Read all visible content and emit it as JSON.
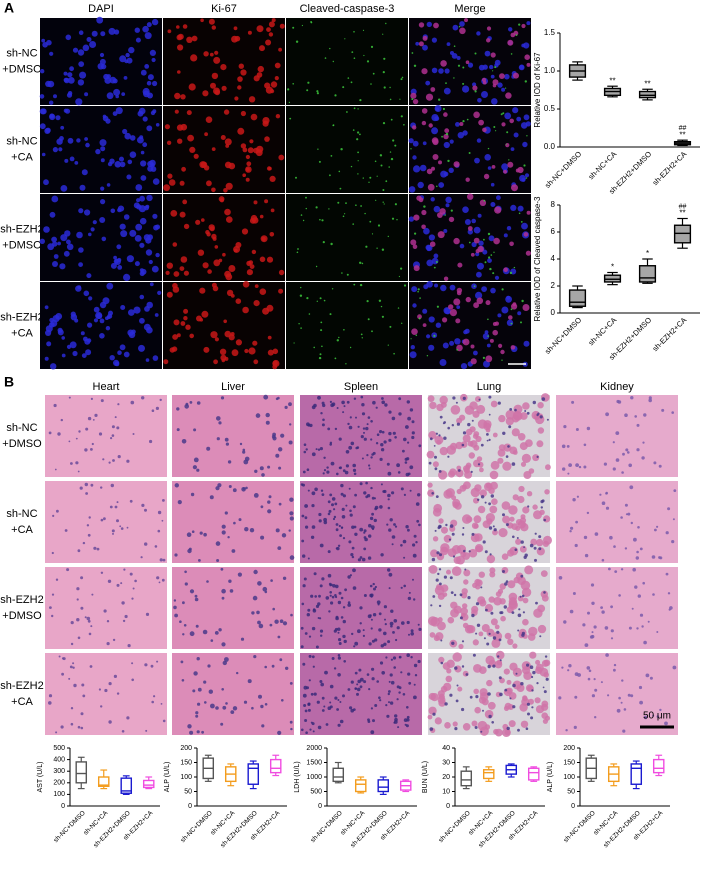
{
  "panel_a": {
    "label": "A",
    "columns": [
      "DAPI",
      "Ki-67",
      "Cleaved-caspase-3",
      "Merge"
    ],
    "rows": [
      [
        "sh-NC",
        "+DMSO"
      ],
      [
        "sh-NC",
        "+CA"
      ],
      [
        "sh-EZH2",
        "+DMSO"
      ],
      [
        "sh-EZH2",
        "+CA"
      ]
    ]
  },
  "panel_b": {
    "label": "B",
    "columns": [
      "Heart",
      "Liver",
      "Spleen",
      "Lung",
      "Kidney"
    ],
    "rows": [
      [
        "sh-NC",
        "+DMSO"
      ],
      [
        "sh-NC",
        "+CA"
      ],
      [
        "sh-EZH2",
        "+DMSO"
      ],
      [
        "sh-EZH2",
        "+CA"
      ]
    ],
    "scale_bar": "50 μm"
  },
  "chart_data": [
    {
      "type": "box",
      "ylabel": "Relative IOD of Ki-67",
      "categories": [
        "sh-NC+DMSO",
        "sh-NC+CA",
        "sh-EZH2+DMSO",
        "sh-EZH2+CA"
      ],
      "colors": [
        "#000000",
        "#000000",
        "#000000",
        "#000000"
      ],
      "fill": "#a6a6a6",
      "ylim": [
        0,
        1.5
      ],
      "yticks": [
        {
          "value": 0,
          "label": "0.0"
        },
        0.5,
        {
          "value": 1,
          "label": "1.0"
        },
        1.5
      ],
      "min": [
        0.88,
        0.66,
        0.62,
        0.02
      ],
      "q1": [
        0.92,
        0.68,
        0.65,
        0.03
      ],
      "median": [
        1.0,
        0.73,
        0.68,
        0.05
      ],
      "q3": [
        1.08,
        0.77,
        0.73,
        0.07
      ],
      "max": [
        1.12,
        0.8,
        0.76,
        0.09
      ],
      "annotations": [
        null,
        "**",
        "**",
        "**"
      ],
      "annotations_top": [
        null,
        null,
        null,
        "##"
      ]
    },
    {
      "type": "box",
      "ylabel": "Relative IOD of Cleaved caspase-3",
      "categories": [
        "sh-NC+DMSO",
        "sh-NC+CA",
        "sh-EZH2+DMSO",
        "sh-EZH2+CA"
      ],
      "colors": [
        "#000000",
        "#000000",
        "#000000",
        "#000000"
      ],
      "fill": "#a6a6a6",
      "ylim": [
        0,
        8
      ],
      "yticks": [
        0,
        2,
        4,
        6,
        8
      ],
      "min": [
        0.4,
        2.1,
        2.2,
        4.8
      ],
      "q1": [
        0.5,
        2.3,
        2.3,
        5.2
      ],
      "median": [
        0.8,
        2.5,
        2.6,
        5.9
      ],
      "q3": [
        1.7,
        2.8,
        3.5,
        6.5
      ],
      "max": [
        2.0,
        3.0,
        4.0,
        7.0
      ],
      "annotations": [
        null,
        "*",
        "*",
        "**"
      ],
      "annotations_top": [
        null,
        null,
        null,
        "##"
      ]
    },
    {
      "type": "box",
      "ylabel": "AST (U/L)",
      "categories": [
        "sh-NC+DMSO",
        "sh-NC+CA",
        "sh-EZH2+DMSO",
        "sh-EZH2+CA"
      ],
      "colors": [
        "#555555",
        "#f39c1d",
        "#1a1ad0",
        "#f04ce0"
      ],
      "ylim": [
        0,
        500
      ],
      "yticks": [
        0,
        100,
        200,
        300,
        400,
        500
      ],
      "min": [
        150,
        150,
        100,
        150
      ],
      "q1": [
        200,
        170,
        110,
        160
      ],
      "median": [
        280,
        180,
        130,
        180
      ],
      "q3": [
        380,
        250,
        240,
        220
      ],
      "max": [
        420,
        310,
        260,
        250
      ]
    },
    {
      "type": "box",
      "ylabel": "ALP (U/L)",
      "categories": [
        "sh-NC+DMSO",
        "sh-NC+CA",
        "sh-EZH2+DMSO",
        "sh-EZH2+CA"
      ],
      "colors": [
        "#555555",
        "#f39c1d",
        "#1a1ad0",
        "#f04ce0"
      ],
      "ylim": [
        0,
        200
      ],
      "yticks": [
        0,
        50,
        100,
        150,
        200
      ],
      "min": [
        85,
        70,
        60,
        105
      ],
      "q1": [
        95,
        85,
        75,
        115
      ],
      "median": [
        130,
        110,
        130,
        130
      ],
      "q3": [
        165,
        135,
        145,
        160
      ],
      "max": [
        175,
        145,
        155,
        175
      ]
    },
    {
      "type": "box",
      "ylabel": "LDH (U/L)",
      "categories": [
        "sh-NC+DMSO",
        "sh-NC+CA",
        "sh-EZH2+DMSO",
        "sh-EZH2+CA"
      ],
      "colors": [
        "#555555",
        "#f39c1d",
        "#1a1ad0",
        "#f04ce0"
      ],
      "ylim": [
        0,
        2000
      ],
      "yticks": [
        0,
        500,
        1000,
        1500,
        2000
      ],
      "min": [
        800,
        450,
        400,
        500
      ],
      "q1": [
        850,
        500,
        500,
        550
      ],
      "median": [
        1000,
        750,
        650,
        700
      ],
      "q3": [
        1300,
        900,
        900,
        850
      ],
      "max": [
        1500,
        1000,
        1000,
        900
      ]
    },
    {
      "type": "box",
      "ylabel": "BUN (U/L)",
      "categories": [
        "sh-NC+DMSO",
        "sh-NC+CA",
        "sh-EZH2+DMSO",
        "sh-EZH2+CA"
      ],
      "colors": [
        "#555555",
        "#f39c1d",
        "#1a1ad0",
        "#f04ce0"
      ],
      "ylim": [
        0,
        40
      ],
      "yticks": [
        0,
        10,
        20,
        30,
        40
      ],
      "min": [
        12,
        17,
        20,
        17
      ],
      "q1": [
        14,
        19,
        22,
        18
      ],
      "median": [
        18,
        23,
        25,
        23
      ],
      "q3": [
        24,
        25,
        28,
        26
      ],
      "max": [
        27,
        27,
        29,
        27
      ]
    },
    {
      "type": "box",
      "ylabel": "ALP (U/L)",
      "categories": [
        "sh-NC+DMSO",
        "sh-NC+CA",
        "sh-EZH2+DMSO",
        "sh-EZH2+CA"
      ],
      "colors": [
        "#555555",
        "#f39c1d",
        "#1a1ad0",
        "#f04ce0"
      ],
      "ylim": [
        0,
        200
      ],
      "yticks": [
        0,
        50,
        100,
        150,
        200
      ],
      "min": [
        85,
        70,
        60,
        105
      ],
      "q1": [
        95,
        85,
        75,
        115
      ],
      "median": [
        130,
        110,
        130,
        130
      ],
      "q3": [
        165,
        135,
        145,
        160
      ],
      "max": [
        175,
        145,
        155,
        175
      ]
    }
  ]
}
